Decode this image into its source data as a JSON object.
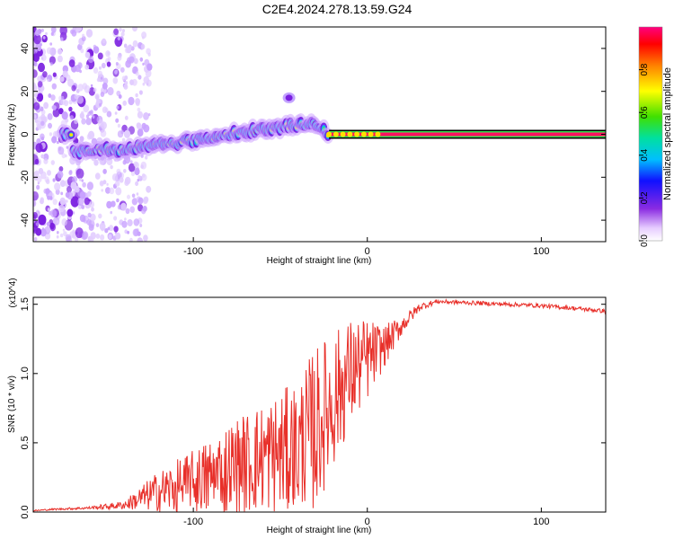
{
  "title": "C2E4.2024.278.13.59.G24",
  "chart_data": [
    {
      "type": "heatmap",
      "xlabel": "Height of straight line (km)",
      "ylabel": "Frequency (Hz)",
      "xlim": [
        -192,
        137
      ],
      "ylim": [
        -50,
        50
      ],
      "xticks": [
        "-100",
        "0",
        "100"
      ],
      "yticks": [
        "-40",
        "-20",
        "0",
        "20",
        "40"
      ],
      "colorbar": {
        "label": "Normalized spectral amplitude",
        "range": [
          0,
          1
        ],
        "ticks": [
          "0.0",
          "0.2",
          "0.4",
          "0.6",
          "0.8"
        ]
      },
      "ridge": [
        {
          "x": -170,
          "y": -8
        },
        {
          "x": -140,
          "y": -7
        },
        {
          "x": -110,
          "y": -4
        },
        {
          "x": -80,
          "y": 0
        },
        {
          "x": -55,
          "y": 3
        },
        {
          "x": -30,
          "y": 5
        },
        {
          "x": -22,
          "y": 0
        },
        {
          "x": 0,
          "y": 0
        },
        {
          "x": 137,
          "y": 0
        }
      ],
      "noise_region_x": [
        -192,
        -125
      ]
    },
    {
      "type": "line",
      "xlabel": "Height of straight line (km)",
      "ylabel": "SNR (10 * v/v)",
      "y_multiplier": "(x10^4)",
      "xlim": [
        -192,
        137
      ],
      "ylim": [
        0,
        15500
      ],
      "xticks": [
        "-100",
        "0",
        "100"
      ],
      "yticks": [
        "0.0",
        "0.5",
        "1.0",
        "1.5"
      ],
      "series": [
        {
          "color": "#e8302a",
          "x": [
            -192,
            -180,
            -160,
            -140,
            -120,
            -100,
            -80,
            -60,
            -40,
            -30,
            -20,
            -10,
            0,
            10,
            20,
            30,
            40,
            60,
            80,
            100,
            120,
            137
          ],
          "y": [
            100,
            200,
            300,
            500,
            1500,
            2000,
            3000,
            4000,
            4500,
            6000,
            8000,
            10000,
            11000,
            12000,
            13500,
            14800,
            15200,
            15100,
            15000,
            14900,
            14700,
            14500
          ],
          "spread": [
            50,
            60,
            100,
            300,
            1500,
            2500,
            3500,
            4000,
            5000,
            6000,
            5000,
            4000,
            3000,
            1500,
            700,
            300,
            150,
            150,
            150,
            150,
            150,
            150
          ]
        }
      ]
    }
  ]
}
